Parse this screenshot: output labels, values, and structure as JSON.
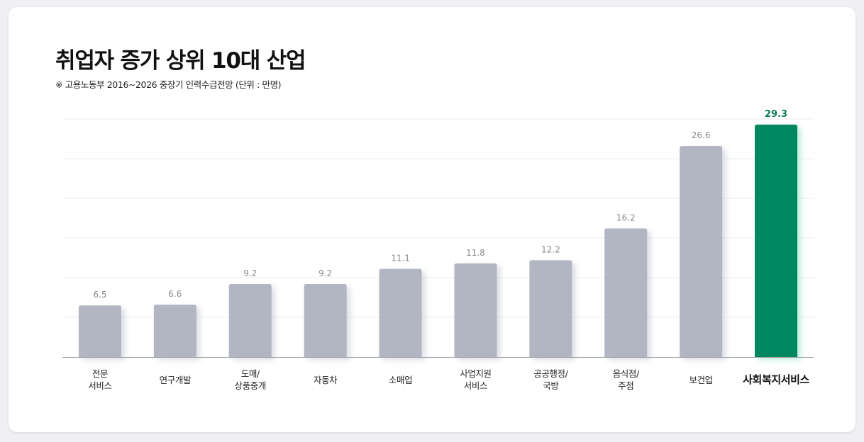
{
  "title": "취업자 증가 상위 10대 산업",
  "subtitle": "※ 고용노동부 2016~2026 중장기 인력수급전망 (단위 : 만명)",
  "colors": {
    "bar": "#b2b6c3",
    "highlight": "#00875f",
    "highlight_label": "#0c7a5a"
  },
  "chart_data": {
    "type": "bar",
    "title": "취업자 증가 상위 10대 산업",
    "unit": "만명",
    "categories": [
      [
        "전문",
        "서비스"
      ],
      [
        "연구개발"
      ],
      [
        "도매/",
        "상품중개"
      ],
      [
        "자동차"
      ],
      [
        "소매업"
      ],
      [
        "사업지원",
        "서비스"
      ],
      [
        "공공행정/",
        "국방"
      ],
      [
        "음식점/",
        "주점"
      ],
      [
        "보건업"
      ],
      [
        "사회복지서비스"
      ]
    ],
    "values": [
      6.5,
      6.6,
      9.2,
      9.2,
      11.1,
      11.8,
      12.2,
      16.2,
      26.6,
      29.3
    ],
    "value_labels": [
      "6.5",
      "6.6",
      "9.2",
      "9.2",
      "11.1",
      "11.8",
      "12.2",
      "16.2",
      "26.6",
      "29.3"
    ],
    "highlight_index": 9,
    "ylim": [
      0,
      30
    ],
    "grid": true,
    "legend": "none"
  }
}
